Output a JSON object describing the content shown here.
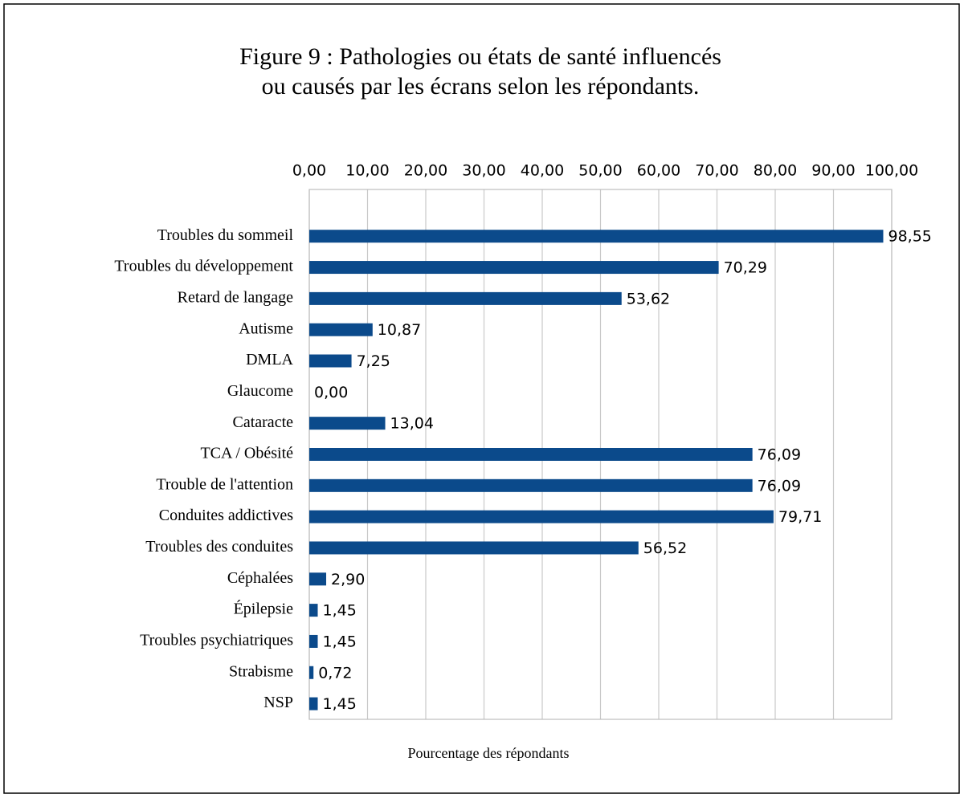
{
  "chart_data": {
    "type": "bar",
    "orientation": "horizontal",
    "title": [
      "Figure 9 : Pathologies ou états de santé influencés",
      "ou causés par les écrans selon les répondants."
    ],
    "x_label": "Pourcentage des répondants",
    "categories": [
      null,
      "Troubles du sommeil",
      "Troubles du développement",
      "Retard de langage",
      "Autisme",
      "DMLA",
      "Glaucome",
      "Cataracte",
      "TCA / Obésité",
      "Trouble de l'attention",
      "Conduites addictives",
      "Troubles des conduites",
      "Céphalées",
      "Épilepsie",
      "Troubles psychiatriques",
      "Strabisme",
      "NSP"
    ],
    "values": [
      null,
      98.55,
      70.29,
      53.62,
      10.87,
      7.25,
      0,
      13.04,
      76.09,
      76.09,
      79.71,
      56.52,
      2.9,
      1.45,
      1.45,
      0.72,
      1.45
    ],
    "value_labels": [
      null,
      "98,55",
      "70,29",
      "53,62",
      "10,87",
      "7,25",
      "0,00",
      "13,04",
      "76,09",
      "76,09",
      "79,71",
      "56,52",
      "2,90",
      "1,45",
      "1,45",
      "0,72",
      "1,45"
    ],
    "color": "#0b4a8b",
    "xlim": [
      0,
      100
    ],
    "xticks": [
      {
        "value": 0,
        "label": "0,00"
      },
      {
        "value": 10,
        "label": "10,00"
      },
      {
        "value": 20,
        "label": "20,00"
      },
      {
        "value": 30,
        "label": "30,00"
      },
      {
        "value": 40,
        "label": "40,00"
      },
      {
        "value": 50,
        "label": "50,00"
      },
      {
        "value": 60,
        "label": "60,00"
      },
      {
        "value": 70,
        "label": "70,00"
      },
      {
        "value": 80,
        "label": "80,00"
      },
      {
        "value": 90,
        "label": "90,00"
      },
      {
        "value": 100,
        "label": "100,00"
      }
    ],
    "grid": true
  }
}
